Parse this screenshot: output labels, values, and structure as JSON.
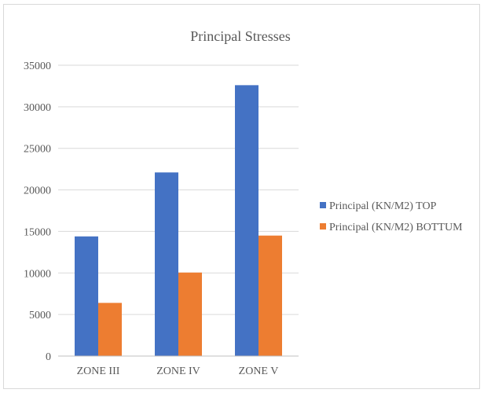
{
  "chart_data": {
    "type": "bar",
    "title": "Principal Stresses",
    "categories": [
      "ZONE III",
      "ZONE IV",
      "ZONE V"
    ],
    "series": [
      {
        "name": "Principal (KN/M2) TOP",
        "values": [
          14400,
          22100,
          32600
        ],
        "color": "#4472C4"
      },
      {
        "name": "Principal (KN/M2) BOTTUM",
        "values": [
          6400,
          10050,
          14500
        ],
        "color": "#ED7D31"
      }
    ],
    "ylim": [
      0,
      35000
    ],
    "yticks": [
      0,
      5000,
      10000,
      15000,
      20000,
      25000,
      30000,
      35000
    ],
    "grid": true,
    "legend_position": "right"
  }
}
